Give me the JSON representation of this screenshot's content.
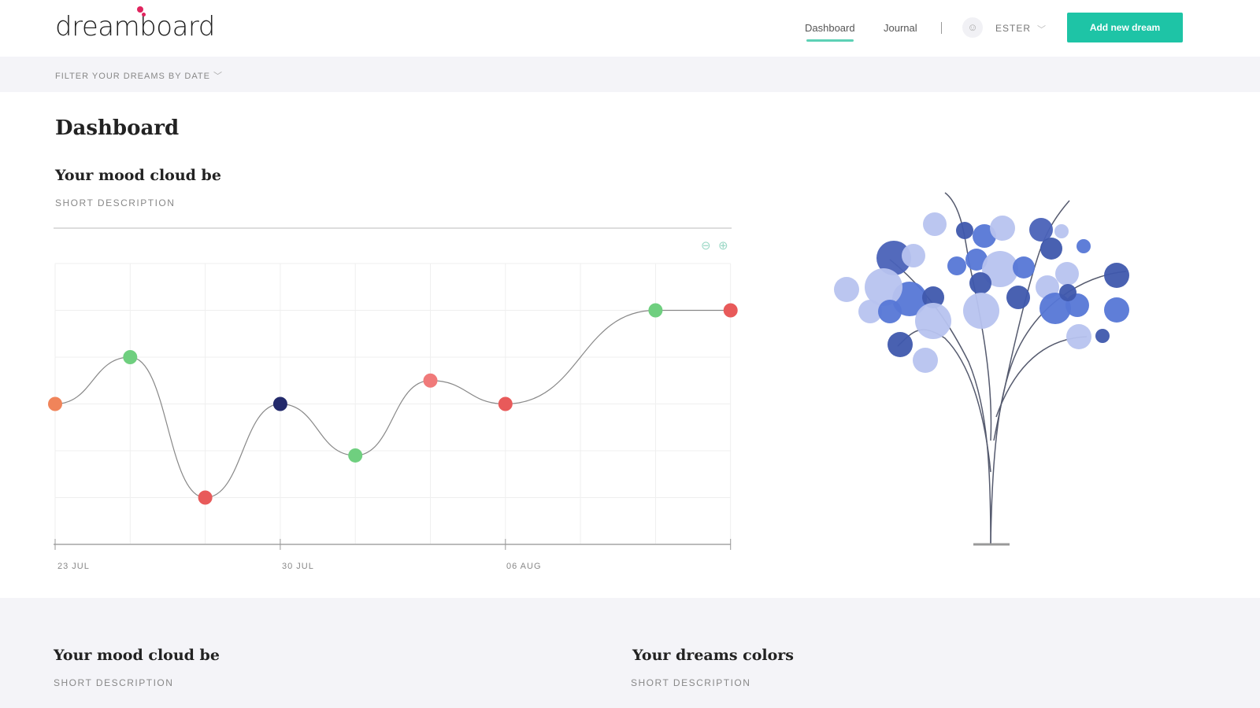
{
  "header": {
    "logo": "dreamboard",
    "nav": [
      {
        "label": "Dashboard",
        "active": true
      },
      {
        "label": "Journal",
        "active": false
      }
    ],
    "user": "ESTER",
    "add_button": "Add new dream"
  },
  "filter": {
    "label": "FILTER YOUR DREAMS BY DATE"
  },
  "page_title": "Dashboard",
  "mood_section": {
    "title": "Your mood cloud be",
    "description": "SHORT DESCRIPTION",
    "zoom_out": "⊖",
    "zoom_in": "⊕"
  },
  "chart_data": {
    "type": "line",
    "x_labels": [
      "23 JUL",
      "30 JUL",
      "06 AUG"
    ],
    "x_index": [
      0,
      1,
      2,
      3,
      4,
      5,
      6,
      8,
      9
    ],
    "values": [
      3,
      4,
      1,
      3,
      1.9,
      3.5,
      3,
      5,
      5
    ],
    "colors": [
      "#f0845a",
      "#6fcf7f",
      "#e85a5a",
      "#232a6b",
      "#6fcf7f",
      "#f07a7a",
      "#e85a5a",
      "#6fcf7f",
      "#e85a5a"
    ],
    "ylim": [
      0,
      6
    ],
    "grid": true
  },
  "bottom": [
    {
      "title": "Your mood cloud be",
      "description": "SHORT DESCRIPTION"
    },
    {
      "title": "Your dreams colors",
      "description": "SHORT DESCRIPTION"
    }
  ],
  "colors": {
    "accent": "#1ec4a6",
    "logo_dot": "#e0245e"
  }
}
